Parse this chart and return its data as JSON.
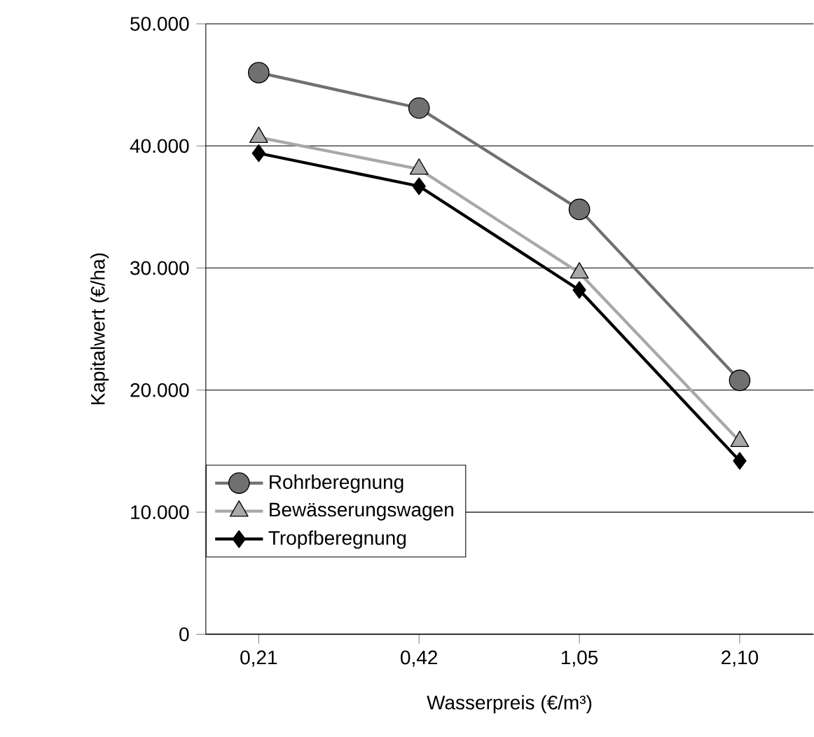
{
  "chart_data": {
    "type": "line",
    "xlabel": "Wasserpreis (€/m³)",
    "ylabel": "Kapitalwert (€/ha)",
    "categories": [
      "0,21",
      "0,42",
      "1,05",
      "2,10"
    ],
    "series": [
      {
        "name": "Rohrberegnung",
        "color": "#707070",
        "marker": "circle",
        "values": [
          46000,
          43100,
          34800,
          20800
        ]
      },
      {
        "name": "Bewässerungswagen",
        "color": "#a8a8a8",
        "marker": "triangle",
        "values": [
          40700,
          38100,
          29600,
          15800
        ]
      },
      {
        "name": "Tropfberegnung",
        "color": "#000000",
        "marker": "diamond",
        "values": [
          39400,
          36700,
          28200,
          14200
        ]
      }
    ],
    "ylim": [
      0,
      50000
    ],
    "yticks": [
      0,
      {
        "value": 10000,
        "label": "10.000"
      },
      {
        "value": 20000,
        "label": "20.000"
      },
      {
        "value": 30000,
        "label": "30.000"
      },
      {
        "value": 40000,
        "label": "40.000"
      },
      {
        "value": 50000,
        "label": "50.000"
      }
    ],
    "grid": "y",
    "legend": "bottom left",
    "line_style": "solid"
  }
}
